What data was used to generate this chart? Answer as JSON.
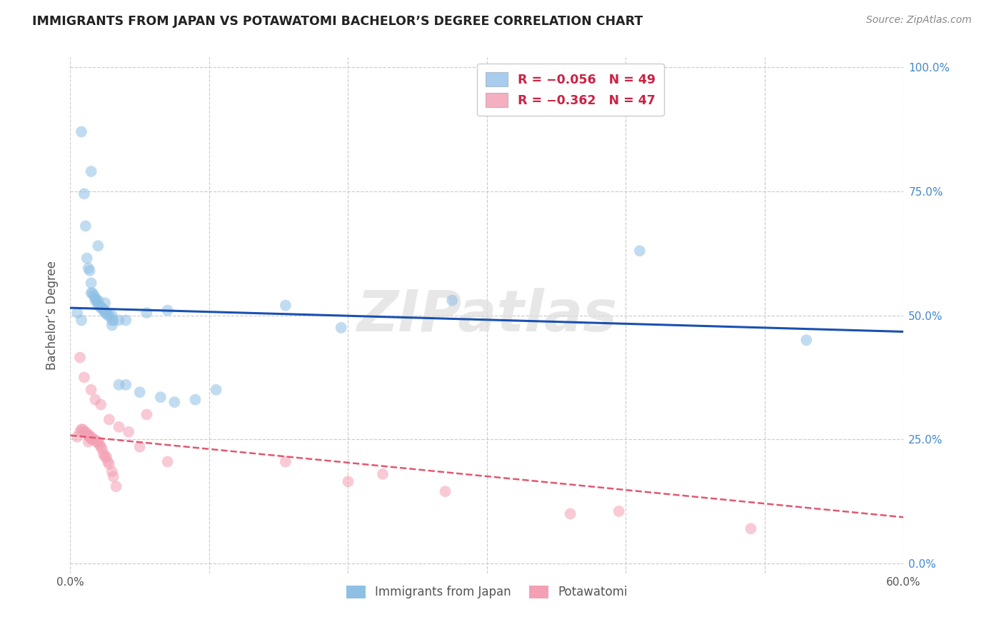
{
  "title": "IMMIGRANTS FROM JAPAN VS POTAWATOMI BACHELOR’S DEGREE CORRELATION CHART",
  "source": "Source: ZipAtlas.com",
  "ylabel": "Bachelor’s Degree",
  "watermark": "ZIPatlas",
  "xmin": 0.0,
  "xmax": 0.6,
  "ymin": 0.0,
  "ymax": 1.0,
  "ytick_vals": [
    0.0,
    0.25,
    0.5,
    0.75,
    1.0
  ],
  "ytick_labels": [
    "0.0%",
    "25.0%",
    "50.0%",
    "75.0%",
    "100.0%"
  ],
  "xtick_vals": [
    0.0,
    0.6
  ],
  "xtick_labels": [
    "0.0%",
    "60.0%"
  ],
  "grid_yticks": [
    0.0,
    0.25,
    0.5,
    0.75,
    1.0
  ],
  "grid_xticks": [
    0.0,
    0.1,
    0.2,
    0.3,
    0.4,
    0.5,
    0.6
  ],
  "blue_scatter": {
    "x": [
      0.005,
      0.008,
      0.01,
      0.011,
      0.012,
      0.013,
      0.014,
      0.015,
      0.015,
      0.016,
      0.017,
      0.018,
      0.018,
      0.019,
      0.02,
      0.02,
      0.021,
      0.022,
      0.023,
      0.024,
      0.025,
      0.025,
      0.026,
      0.027,
      0.028,
      0.03,
      0.03,
      0.031,
      0.035,
      0.04,
      0.055,
      0.07,
      0.155,
      0.195,
      0.275,
      0.41,
      0.53,
      0.008,
      0.015,
      0.02,
      0.025,
      0.03,
      0.035,
      0.04,
      0.05,
      0.065,
      0.075,
      0.09,
      0.105
    ],
    "y": [
      0.505,
      0.49,
      0.745,
      0.68,
      0.615,
      0.595,
      0.59,
      0.565,
      0.545,
      0.545,
      0.54,
      0.535,
      0.53,
      0.53,
      0.53,
      0.52,
      0.52,
      0.515,
      0.515,
      0.51,
      0.51,
      0.505,
      0.505,
      0.5,
      0.5,
      0.5,
      0.49,
      0.49,
      0.49,
      0.49,
      0.505,
      0.51,
      0.52,
      0.475,
      0.53,
      0.63,
      0.45,
      0.87,
      0.79,
      0.64,
      0.525,
      0.48,
      0.36,
      0.36,
      0.345,
      0.335,
      0.325,
      0.33,
      0.35
    ]
  },
  "pink_scatter": {
    "x": [
      0.005,
      0.007,
      0.008,
      0.009,
      0.01,
      0.011,
      0.012,
      0.013,
      0.013,
      0.014,
      0.014,
      0.015,
      0.015,
      0.016,
      0.017,
      0.018,
      0.019,
      0.02,
      0.021,
      0.022,
      0.023,
      0.024,
      0.025,
      0.026,
      0.027,
      0.028,
      0.03,
      0.031,
      0.033,
      0.055,
      0.07,
      0.155,
      0.2,
      0.225,
      0.27,
      0.36,
      0.395,
      0.49,
      0.007,
      0.01,
      0.015,
      0.018,
      0.022,
      0.028,
      0.035,
      0.042,
      0.05
    ],
    "y": [
      0.255,
      0.265,
      0.27,
      0.27,
      0.265,
      0.265,
      0.26,
      0.245,
      0.26,
      0.255,
      0.255,
      0.255,
      0.25,
      0.25,
      0.25,
      0.248,
      0.245,
      0.245,
      0.24,
      0.235,
      0.23,
      0.22,
      0.215,
      0.215,
      0.205,
      0.2,
      0.185,
      0.175,
      0.155,
      0.3,
      0.205,
      0.205,
      0.165,
      0.18,
      0.145,
      0.1,
      0.105,
      0.07,
      0.415,
      0.375,
      0.35,
      0.33,
      0.32,
      0.29,
      0.275,
      0.265,
      0.235
    ]
  },
  "blue_line": {
    "x0": 0.0,
    "x1": 0.6,
    "y0": 0.515,
    "y1": 0.467
  },
  "pink_line": {
    "x0": 0.0,
    "x1": 0.6,
    "y0": 0.258,
    "y1": 0.093
  },
  "scatter_size": 130,
  "scatter_alpha": 0.55,
  "blue_dot_color": "#8ec0e4",
  "pink_dot_color": "#f4a0b4",
  "blue_line_color": "#1a50b0",
  "pink_line_color": "#e05870",
  "grid_color": "#cccccc",
  "right_tick_color": "#4488cc",
  "left_axis_color": "#aaaaaa",
  "background_color": "#ffffff",
  "title_color": "#222222",
  "source_color": "#888888",
  "watermark_color": "#dedede",
  "legend_blue_color": "#a8ccee",
  "legend_pink_color": "#f4b0c0",
  "legend_text_color": "#cc2244",
  "bottom_legend_text_color": "#555555"
}
